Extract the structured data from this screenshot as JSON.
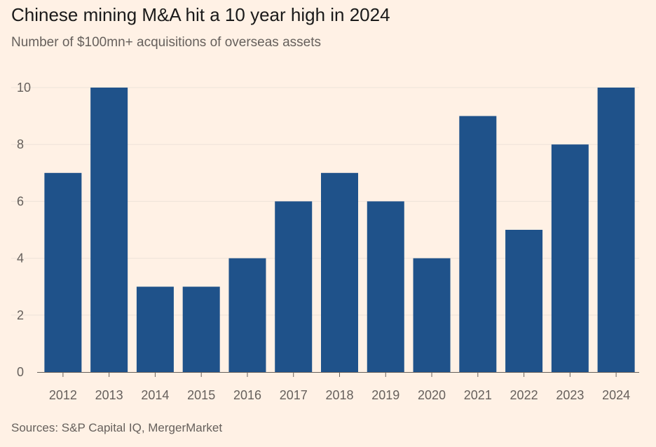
{
  "chart_data": {
    "type": "bar",
    "title": "Chinese mining M&A hit a 10 year high in 2024",
    "subtitle": "Number of $100mn+ acquisitions of overseas assets",
    "source": "Sources: S&P Capital IQ, MergerMarket",
    "categories": [
      "2012",
      "2013",
      "2014",
      "2015",
      "2016",
      "2017",
      "2018",
      "2019",
      "2020",
      "2021",
      "2022",
      "2023",
      "2024"
    ],
    "values": [
      7,
      10,
      3,
      3,
      4,
      6,
      7,
      6,
      4,
      9,
      5,
      8,
      10
    ],
    "ylim": [
      0,
      10
    ],
    "yticks": [
      0,
      2,
      4,
      6,
      8,
      10
    ],
    "grid": true,
    "legend": "none",
    "colors": {
      "bar": "#1f528a",
      "background": "#fff1e5",
      "grid": "#ede2d9",
      "axis": "#66605c",
      "text": "#1a1a1a"
    }
  }
}
